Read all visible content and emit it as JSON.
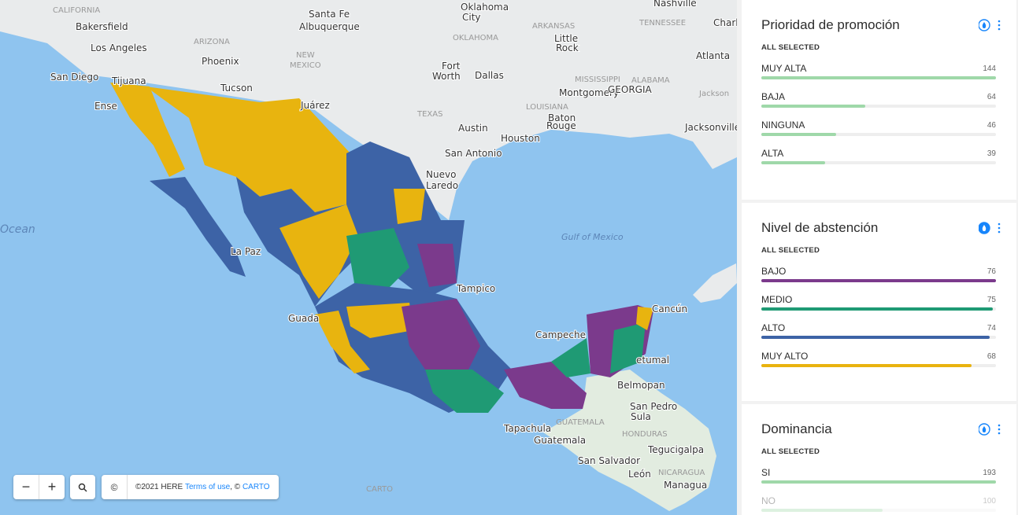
{
  "map": {
    "labels": [
      "CALIFORNIA",
      "Bakersfield",
      "Santa Fe",
      "Albuquerque",
      "Oklahoma",
      "City",
      "OKLAHOMA",
      "ARKANSAS",
      "Little",
      "Rock",
      "TENNESSEE",
      "Nashville",
      "Charl",
      "Los Angeles",
      "ARIZONA",
      "Phoenix",
      "NEW",
      "MEXICO",
      "Atlanta",
      "San Diego",
      "Tijuana",
      "Ense",
      "Tucson",
      "Juárez",
      "MISSISSIPPI",
      "ALABAMA",
      "Jackson",
      "Montgomery",
      "GEORGIA",
      "Fort",
      "Worth",
      "Dallas",
      "LOUISIANA",
      "TEXAS",
      "Baton",
      "Rouge",
      "Austin",
      "Houston",
      "Jacksonville",
      "San Antonio",
      "Nuevo",
      "Laredo",
      "Ocean",
      "Gulf of Mexico",
      "La Paz",
      "Tampico",
      "Cancún",
      "Campeche",
      "Guada",
      "etumal",
      "Belmopan",
      "San Pedro",
      "Sula",
      "Tapachula",
      "GUATEMALA",
      "Guatemala",
      "HONDURAS",
      "Tegucigalpa",
      "San Salvador",
      "León",
      "NICARAGUA",
      "Managua"
    ],
    "zoom_out": "−",
    "zoom_in": "+",
    "info": "©",
    "attribution": {
      "copyright": "©2021 HERE",
      "terms": "Terms of use",
      "separator": ", ©",
      "carto": "CARTO"
    },
    "logo": "CARTO"
  },
  "widgets": [
    {
      "title": "Prioridad de promoción",
      "subtitle": "ALL SELECTED",
      "rows": [
        {
          "label": "MUY ALTA",
          "value": 144,
          "color": "#9fd8a9"
        },
        {
          "label": "BAJA",
          "value": 64,
          "color": "#9fd8a9"
        },
        {
          "label": "NINGUNA",
          "value": 46,
          "color": "#9fd8a9"
        },
        {
          "label": "ALTA",
          "value": 39,
          "color": "#9fd8a9"
        }
      ]
    },
    {
      "title": "Nivel de abstención",
      "subtitle": "ALL SELECTED",
      "rows": [
        {
          "label": "BAJO",
          "value": 76,
          "color": "#7b3a8c"
        },
        {
          "label": "MEDIO",
          "value": 75,
          "color": "#1f9a74"
        },
        {
          "label": "ALTO",
          "value": 74,
          "color": "#3d63a6"
        },
        {
          "label": "MUY ALTO",
          "value": 68,
          "color": "#e9b30f"
        }
      ]
    },
    {
      "title": "Dominancia",
      "subtitle": "ALL SELECTED",
      "rows": [
        {
          "label": "SI",
          "value": 193,
          "color": "#9fd8a9"
        },
        {
          "label": "NO",
          "value": 100,
          "color": "#9fd8a9"
        }
      ]
    }
  ]
}
